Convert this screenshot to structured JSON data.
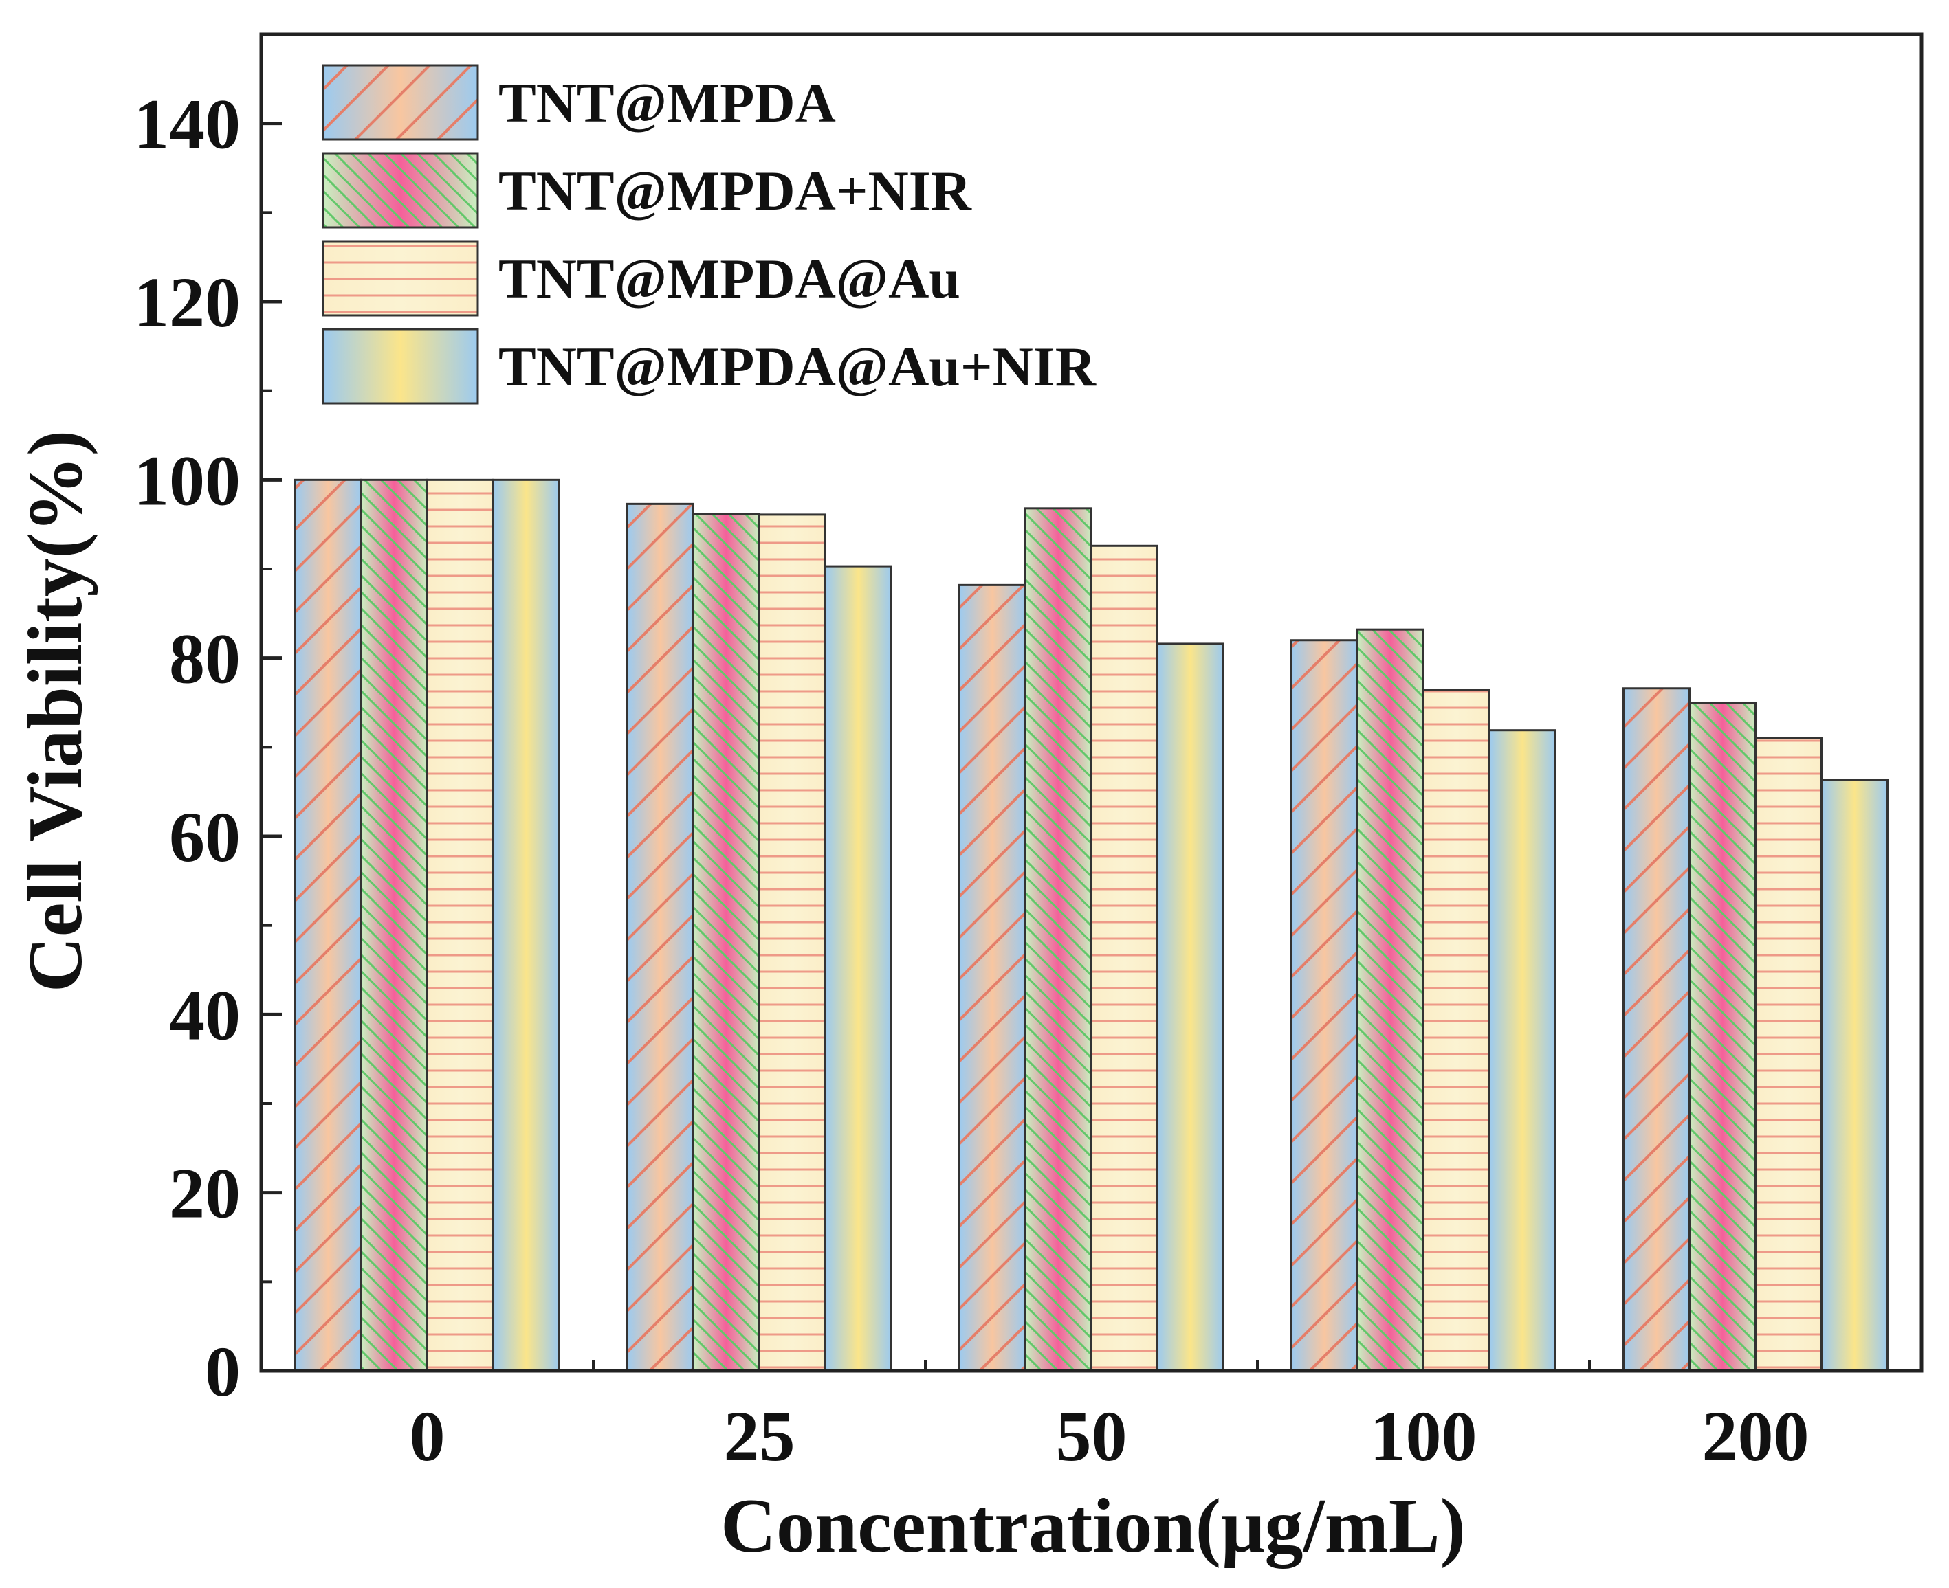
{
  "chart_data": {
    "type": "bar",
    "title": "",
    "xlabel": "Concentration(μg/mL)",
    "ylabel": "Cell Viability(%)",
    "ylim": [
      0,
      150
    ],
    "yticks": [
      0,
      20,
      40,
      60,
      80,
      100,
      120,
      140
    ],
    "categories": [
      "0",
      "25",
      "50",
      "100",
      "200"
    ],
    "legend_position": "top-left",
    "series": [
      {
        "name": "TNT@MPDA",
        "values": [
          100,
          97.3,
          88.2,
          82.0,
          76.6
        ]
      },
      {
        "name": "TNT@MPDA+NIR",
        "values": [
          100,
          96.2,
          96.8,
          83.2,
          75.0
        ]
      },
      {
        "name": "TNT@MPDA@Au",
        "values": [
          100,
          96.1,
          92.6,
          76.4,
          71.0
        ]
      },
      {
        "name": "TNT@MPDA@Au+NIR",
        "values": [
          100,
          90.3,
          81.6,
          71.9,
          66.3
        ]
      }
    ]
  },
  "colors": {
    "blue": "#9ccaef",
    "orange": "#f8c6a0",
    "red_hatch": "#e57f6a",
    "green": "#c9f0c0",
    "pink": "#f5609a",
    "green_hatch": "#62c86a",
    "cream": "#fbeec8",
    "orange_stripe": "#ee9a88",
    "yellow": "#fbe58a",
    "frame": "#222222"
  }
}
